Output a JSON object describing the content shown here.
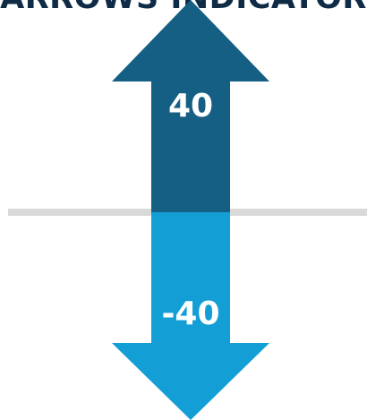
{
  "title": "ARROWS INDICATOR",
  "colors": {
    "title": "#0f2b45",
    "up_arrow": "#155f84",
    "down_arrow": "#139fd6",
    "axis_line": "#d9d9d9",
    "label": "#ffffff"
  },
  "arrows": {
    "up": {
      "value": 40,
      "label": "40"
    },
    "down": {
      "value": -40,
      "label": "-40"
    }
  }
}
